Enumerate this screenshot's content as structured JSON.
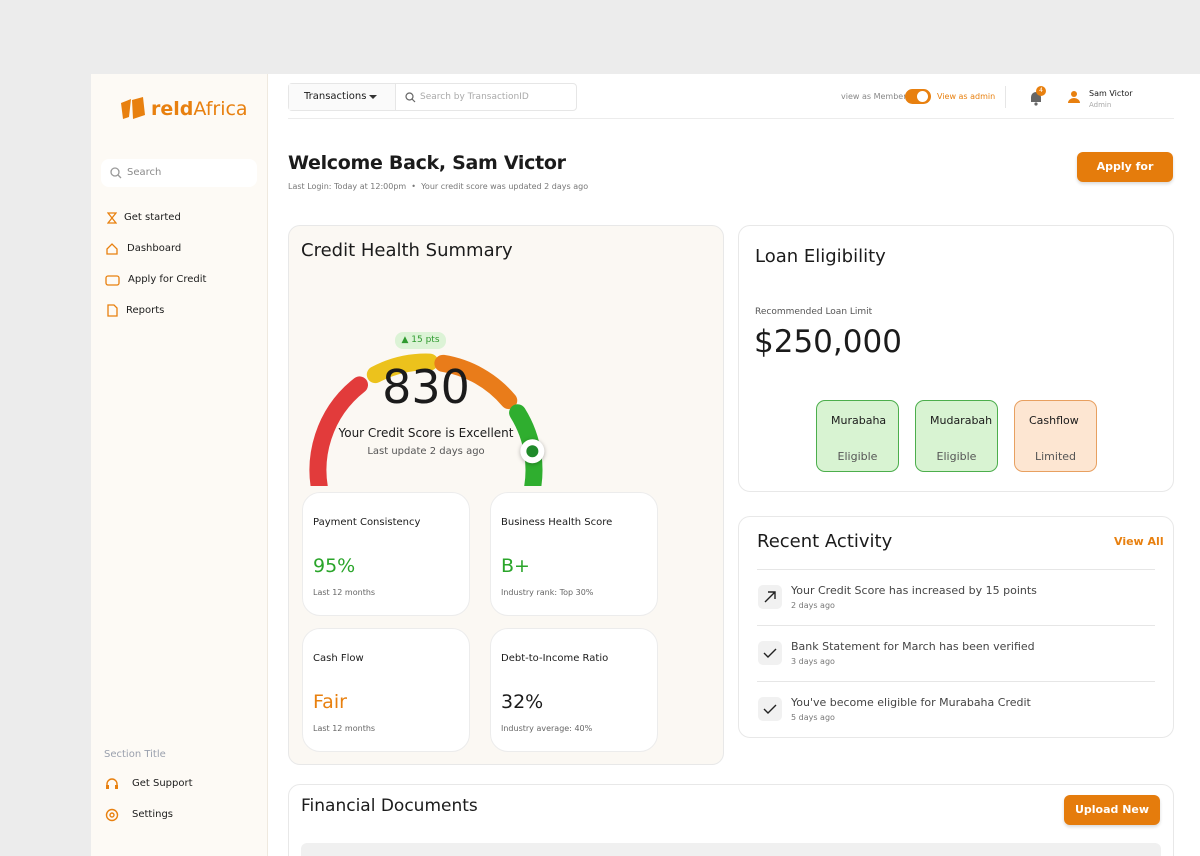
{
  "sidebar": {
    "logo": {
      "bold": "reld",
      "light": "Africa"
    },
    "search_placeholder": "Search",
    "nav": [
      "Get started",
      "Dashboard",
      "Apply for Credit",
      "Reports"
    ],
    "section_title": "Section Title",
    "footer_nav": [
      "Get Support",
      "Settings"
    ]
  },
  "topbar": {
    "dropdown": "Transactions",
    "search_placeholder": "Search by TransactionID",
    "view_member": "view as Member",
    "view_admin": "View as admin",
    "notifications": "4",
    "user_name": "Sam Victor",
    "user_role": "Admin"
  },
  "header": {
    "title": "Welcome Back, Sam Victor",
    "last_login": "Last Login: Today at 12:00pm",
    "score_note": "Your credit score was updated 2 days ago",
    "cta": "Apply for Credit"
  },
  "credit_health": {
    "title": "Credit Health Summary",
    "delta": "15 pts",
    "score": "830",
    "status": "Your Credit Score is Excellent",
    "updated": "Last update 2 days ago",
    "metrics": [
      {
        "label": "Payment Consistency",
        "value": "95%",
        "note": "Last 12 months"
      },
      {
        "label": "Business Health Score",
        "value": "B+",
        "note": "Industry rank: Top 30%"
      },
      {
        "label": "Cash Flow",
        "value": "Fair",
        "note": "Last 12 months"
      },
      {
        "label": "Debt-to-Income Ratio",
        "value": "32%",
        "note": "Industry average: 40%"
      }
    ]
  },
  "loan": {
    "title": "Loan Eligibility",
    "limit_label": "Recommended Loan Limit",
    "limit": "$250,000",
    "products": [
      {
        "name": "Murabaha",
        "status": "Eligible"
      },
      {
        "name": "Mudarabah",
        "status": "Eligible"
      },
      {
        "name": "Cashflow",
        "status": "Limited"
      }
    ]
  },
  "activity": {
    "title": "Recent Activity",
    "view_all": "View All",
    "items": [
      {
        "text": "Your Credit Score has increased by 15 points",
        "time": "2 days ago"
      },
      {
        "text": "Bank Statement for March has been verified",
        "time": "3 days ago"
      },
      {
        "text": "You've become eligible for Murabaha Credit",
        "time": "5 days ago"
      }
    ]
  },
  "documents": {
    "title": "Financial Documents",
    "cta": "Upload New"
  }
}
